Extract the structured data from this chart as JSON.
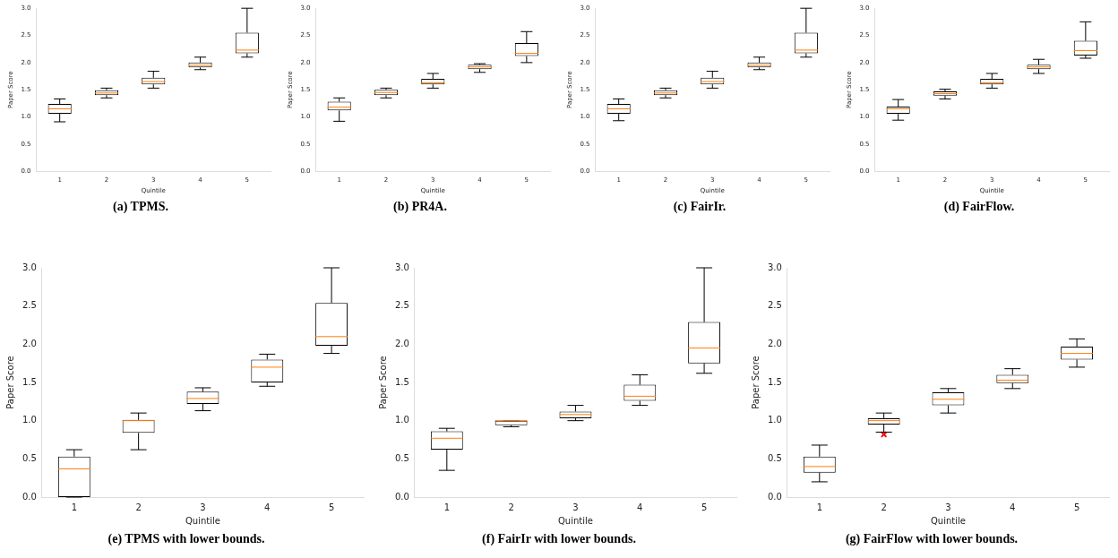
{
  "chart_data": [
    {
      "type": "box",
      "title": "(a) TPMS.",
      "xlabel": "Quintile",
      "ylabel": "Paper Score",
      "categories": [
        "1",
        "2",
        "3",
        "4",
        "5"
      ],
      "ylim": [
        0,
        3
      ],
      "yticks": [
        {
          "value": 0,
          "label": "0.0"
        },
        0.5,
        {
          "value": 1,
          "label": "1.0"
        },
        1.5,
        {
          "value": 2,
          "label": "2.0"
        },
        2.5,
        {
          "value": 3,
          "label": "3.0"
        }
      ],
      "color": "#000000",
      "boxes": [
        {
          "low": 0.91,
          "q1": 1.06,
          "median": 1.15,
          "q3": 1.24,
          "high": 1.33
        },
        {
          "low": 1.35,
          "q1": 1.4,
          "median": 1.44,
          "q3": 1.49,
          "high": 1.53
        },
        {
          "low": 1.53,
          "q1": 1.6,
          "median": 1.65,
          "q3": 1.72,
          "high": 1.84
        },
        {
          "low": 1.87,
          "q1": 1.91,
          "median": 1.95,
          "q3": 2.0,
          "high": 2.1
        },
        {
          "low": 2.1,
          "q1": 2.17,
          "median": 2.23,
          "q3": 2.55,
          "high": 3.0
        }
      ]
    },
    {
      "type": "box",
      "title": "(b) PR4A.",
      "xlabel": "Quintile",
      "ylabel": "Paper Score",
      "categories": [
        "1",
        "2",
        "3",
        "4",
        "5"
      ],
      "ylim": [
        0,
        3
      ],
      "yticks": [
        {
          "value": 0,
          "label": "0.0"
        },
        0.5,
        {
          "value": 1,
          "label": "1.0"
        },
        1.5,
        {
          "value": 2,
          "label": "2.0"
        },
        2.5,
        {
          "value": 3,
          "label": "3.0"
        }
      ],
      "color": "#000000",
      "boxes": [
        {
          "low": 0.92,
          "q1": 1.12,
          "median": 1.18,
          "q3": 1.28,
          "high": 1.35
        },
        {
          "low": 1.35,
          "q1": 1.4,
          "median": 1.45,
          "q3": 1.5,
          "high": 1.53
        },
        {
          "low": 1.53,
          "q1": 1.6,
          "median": 1.63,
          "q3": 1.7,
          "high": 1.8
        },
        {
          "low": 1.82,
          "q1": 1.88,
          "median": 1.92,
          "q3": 1.96,
          "high": 1.98
        },
        {
          "low": 2.0,
          "q1": 2.12,
          "median": 2.17,
          "q3": 2.36,
          "high": 2.57
        }
      ]
    },
    {
      "type": "box",
      "title": "(c) FairIr.",
      "xlabel": "Quintile",
      "ylabel": "Paper Score",
      "categories": [
        "1",
        "2",
        "3",
        "4",
        "5"
      ],
      "ylim": [
        0,
        3
      ],
      "yticks": [
        {
          "value": 0,
          "label": "0.0"
        },
        0.5,
        {
          "value": 1,
          "label": "1.0"
        },
        1.5,
        {
          "value": 2,
          "label": "2.0"
        },
        2.5,
        {
          "value": 3,
          "label": "3.0"
        }
      ],
      "color": "#000000",
      "boxes": [
        {
          "low": 0.93,
          "q1": 1.06,
          "median": 1.15,
          "q3": 1.24,
          "high": 1.33
        },
        {
          "low": 1.35,
          "q1": 1.4,
          "median": 1.44,
          "q3": 1.49,
          "high": 1.53
        },
        {
          "low": 1.53,
          "q1": 1.6,
          "median": 1.65,
          "q3": 1.72,
          "high": 1.84
        },
        {
          "low": 1.87,
          "q1": 1.91,
          "median": 1.95,
          "q3": 2.0,
          "high": 2.1
        },
        {
          "low": 2.1,
          "q1": 2.17,
          "median": 2.23,
          "q3": 2.55,
          "high": 3.0
        }
      ]
    },
    {
      "type": "box",
      "title": "(d) FairFlow.",
      "xlabel": "Quintile",
      "ylabel": "Paper Score",
      "categories": [
        "1",
        "2",
        "3",
        "4",
        "5"
      ],
      "ylim": [
        0,
        3
      ],
      "yticks": [
        {
          "value": 0,
          "label": "0.0"
        },
        0.5,
        {
          "value": 1,
          "label": "1.0"
        },
        1.5,
        {
          "value": 2,
          "label": "2.0"
        },
        2.5,
        {
          "value": 3,
          "label": "3.0"
        }
      ],
      "color": "#000000",
      "boxes": [
        {
          "low": 0.94,
          "q1": 1.06,
          "median": 1.15,
          "q3": 1.19,
          "high": 1.32
        },
        {
          "low": 1.33,
          "q1": 1.39,
          "median": 1.43,
          "q3": 1.47,
          "high": 1.51
        },
        {
          "low": 1.53,
          "q1": 1.6,
          "median": 1.63,
          "q3": 1.7,
          "high": 1.8
        },
        {
          "low": 1.8,
          "q1": 1.88,
          "median": 1.92,
          "q3": 1.96,
          "high": 2.06
        },
        {
          "low": 2.08,
          "q1": 2.13,
          "median": 2.22,
          "q3": 2.4,
          "high": 2.75
        }
      ]
    },
    {
      "type": "box",
      "title": "(e) TPMS with lower bounds.",
      "xlabel": "Quintile",
      "ylabel": "Paper Score",
      "categories": [
        "1",
        "2",
        "3",
        "4",
        "5"
      ],
      "ylim": [
        0,
        3
      ],
      "yticks": [
        {
          "value": 0,
          "label": "0.0"
        },
        0.5,
        {
          "value": 1,
          "label": "1.0"
        },
        1.5,
        {
          "value": 2,
          "label": "2.0"
        },
        2.5,
        {
          "value": 3,
          "label": "3.0"
        }
      ],
      "color": "#000000",
      "boxes": [
        {
          "low": 0.0,
          "q1": 0.0,
          "median": 0.37,
          "q3": 0.53,
          "high": 0.62
        },
        {
          "low": 0.62,
          "q1": 0.84,
          "median": 1.0,
          "q3": 1.01,
          "high": 1.1
        },
        {
          "low": 1.13,
          "q1": 1.22,
          "median": 1.29,
          "q3": 1.38,
          "high": 1.43
        },
        {
          "low": 1.45,
          "q1": 1.5,
          "median": 1.7,
          "q3": 1.8,
          "high": 1.87
        },
        {
          "low": 1.88,
          "q1": 1.98,
          "median": 2.1,
          "q3": 2.54,
          "high": 3.0
        }
      ]
    },
    {
      "type": "box",
      "title": "(f) FairIr with lower bounds.",
      "xlabel": "Quintile",
      "ylabel": "Paper Score",
      "categories": [
        "1",
        "2",
        "3",
        "4",
        "5"
      ],
      "ylim": [
        0,
        3
      ],
      "yticks": [
        {
          "value": 0,
          "label": "0.0"
        },
        0.5,
        {
          "value": 1,
          "label": "1.0"
        },
        1.5,
        {
          "value": 2,
          "label": "2.0"
        },
        2.5,
        {
          "value": 3,
          "label": "3.0"
        }
      ],
      "color": "#000000",
      "boxes": [
        {
          "low": 0.35,
          "q1": 0.62,
          "median": 0.77,
          "q3": 0.86,
          "high": 0.9
        },
        {
          "low": 0.92,
          "q1": 0.94,
          "median": 1.0,
          "q3": 1.0,
          "high": 1.0
        },
        {
          "low": 1.0,
          "q1": 1.03,
          "median": 1.08,
          "q3": 1.12,
          "high": 1.2
        },
        {
          "low": 1.2,
          "q1": 1.26,
          "median": 1.32,
          "q3": 1.47,
          "high": 1.6
        },
        {
          "low": 1.62,
          "q1": 1.75,
          "median": 1.95,
          "q3": 2.29,
          "high": 3.0
        }
      ]
    },
    {
      "type": "box",
      "title": "(g) FairFlow with lower bounds.",
      "xlabel": "Quintile",
      "ylabel": "Paper Score",
      "categories": [
        "1",
        "2",
        "3",
        "4",
        "5"
      ],
      "ylim": [
        0,
        3
      ],
      "yticks": [
        {
          "value": 0,
          "label": "0.0"
        },
        0.5,
        {
          "value": 1,
          "label": "1.0"
        },
        1.5,
        {
          "value": 2,
          "label": "2.0"
        },
        2.5,
        {
          "value": 3,
          "label": "3.0"
        }
      ],
      "color": "#000000",
      "boxes": [
        {
          "low": 0.2,
          "q1": 0.32,
          "median": 0.4,
          "q3": 0.53,
          "high": 0.68
        },
        {
          "low": 0.85,
          "q1": 0.95,
          "median": 1.0,
          "q3": 1.03,
          "high": 1.1,
          "outliers": [
            0.82
          ]
        },
        {
          "low": 1.1,
          "q1": 1.2,
          "median": 1.28,
          "q3": 1.37,
          "high": 1.42
        },
        {
          "low": 1.42,
          "q1": 1.49,
          "median": 1.53,
          "q3": 1.6,
          "high": 1.68
        },
        {
          "low": 1.7,
          "q1": 1.8,
          "median": 1.88,
          "q3": 1.97,
          "high": 2.07
        }
      ]
    }
  ]
}
